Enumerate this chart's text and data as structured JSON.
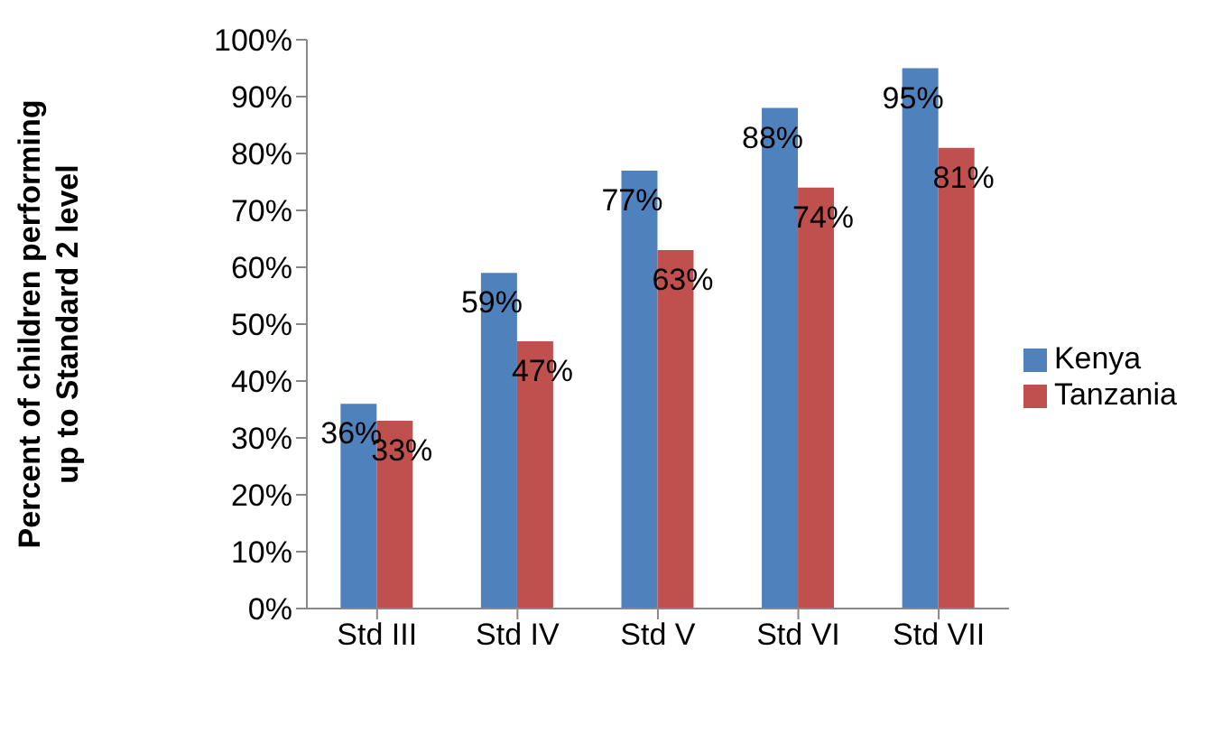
{
  "chart_data": {
    "type": "bar",
    "ylabel": "Percent of children performing up to Standard 2 level",
    "categories": [
      "Std III",
      "Std IV",
      "Std V",
      "Std VI",
      "Std VII"
    ],
    "series": [
      {
        "name": "Kenya",
        "color": "#4f81bd",
        "values": [
          36,
          59,
          77,
          88,
          95
        ],
        "value_labels": [
          "36%",
          "59%",
          "77%",
          "88%",
          "95%"
        ]
      },
      {
        "name": "Tanzania",
        "color": "#c0504d",
        "values": [
          33,
          47,
          63,
          74,
          81
        ],
        "value_labels": [
          "33%",
          "47%",
          "63%",
          "74%",
          "81%"
        ]
      }
    ],
    "ylim": [
      0,
      100
    ],
    "yticks": [
      {
        "value": 0,
        "label": "0%"
      },
      {
        "value": 10,
        "label": "10%"
      },
      {
        "value": 20,
        "label": "20%"
      },
      {
        "value": 30,
        "label": "30%"
      },
      {
        "value": 40,
        "label": "40%"
      },
      {
        "value": 50,
        "label": "50%"
      },
      {
        "value": 60,
        "label": "60%"
      },
      {
        "value": 70,
        "label": "70%"
      },
      {
        "value": 80,
        "label": "80%"
      },
      {
        "value": 90,
        "label": "90%"
      },
      {
        "value": 100,
        "label": "100%"
      }
    ],
    "grid": false,
    "legend": "right"
  }
}
